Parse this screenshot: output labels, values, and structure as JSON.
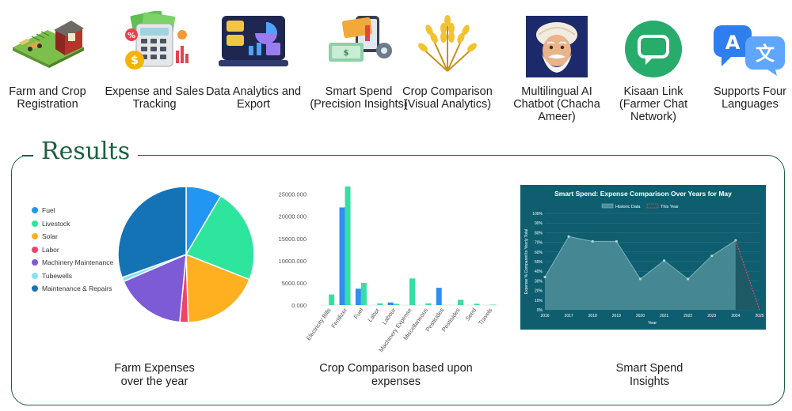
{
  "features": [
    {
      "label": "Farm and Crop Registration",
      "icon": "farm-icon"
    },
    {
      "label": "Expense and Sales Tracking",
      "icon": "calculator-money-icon"
    },
    {
      "label": "Data Analytics and Export",
      "icon": "dashboard-icon"
    },
    {
      "label": "Smart Spend (Precision Insights)",
      "icon": "cards-settings-icon"
    },
    {
      "label": "Crop Comparison (Visual Analytics)",
      "icon": "wheat-icon"
    },
    {
      "label": "Multilingual AI Chatbot (Chacha Ameer)",
      "icon": "chacha-ameer-avatar-icon"
    },
    {
      "label": "Kisaan Link (Farmer Chat Network)",
      "icon": "chat-bubble-icon"
    },
    {
      "label": "Supports Four Languages",
      "icon": "translate-icon"
    }
  ],
  "results_title": "Results",
  "captions": {
    "pie": "Farm Expenses over the year",
    "bar": "Crop Comparison based upon expenses",
    "smart": "Smart Spend Insights"
  },
  "chart_data": [
    {
      "type": "pie",
      "title": "",
      "legend_position": "left",
      "slices": [
        {
          "name": "Fuel",
          "value": 8.5,
          "color": "#2196f3"
        },
        {
          "name": "Livestock",
          "value": 22.5,
          "color": "#2ee59d"
        },
        {
          "name": "Solar",
          "value": 18.5,
          "color": "#ffb020"
        },
        {
          "name": "Labor",
          "value": 2.0,
          "color": "#f0436b"
        },
        {
          "name": "Machinery Maintenance",
          "value": 17.0,
          "color": "#7d5ad6"
        },
        {
          "name": "Tubewells",
          "value": 1.0,
          "color": "#7fe4f5"
        },
        {
          "name": "Maintenance & Repairs",
          "value": 30.5,
          "color": "#1373b5"
        }
      ]
    },
    {
      "type": "bar",
      "title": "",
      "xlabel": "",
      "ylabel": "",
      "ylim": [
        0,
        26000
      ],
      "yticks": [
        "0.000",
        "5000.000",
        "10000.000",
        "15000.000",
        "20000.000",
        "25000.000"
      ],
      "yticks_values": [
        0,
        5000,
        10000,
        15000,
        20000,
        25000
      ],
      "categories": [
        "Electricity Bills",
        "Fertilizer",
        "Fuel",
        "Labor",
        "Labour",
        "Machinery Expense",
        "Miscellaneous",
        "Pesticides",
        "Pestisides",
        "Seed",
        "Travels"
      ],
      "series": [
        {
          "values": [
            0,
            22000,
            3700,
            0,
            600,
            0,
            0,
            3900,
            0,
            0,
            0
          ],
          "color": "#2f8ff0"
        },
        {
          "values": [
            2400,
            26800,
            5000,
            400,
            300,
            6000,
            400,
            0,
            1200,
            300,
            100
          ],
          "color": "#34e0a1"
        }
      ]
    },
    {
      "type": "area",
      "title": "Smart Spend: Expense Comparison Over Years for May",
      "xlabel": "Year",
      "ylabel": "Expense % Compared to Yearly Total",
      "ylim": [
        0,
        100
      ],
      "yticks": [
        "0%",
        "10%",
        "20%",
        "30%",
        "40%",
        "50%",
        "60%",
        "70%",
        "80%",
        "90%",
        "100%"
      ],
      "yticks_values": [
        0,
        10,
        20,
        30,
        40,
        50,
        60,
        70,
        80,
        90,
        100
      ],
      "x": [
        "2016",
        "2017",
        "2018",
        "2019",
        "2020",
        "2021",
        "2022",
        "2023",
        "2024",
        "2025"
      ],
      "series": [
        {
          "name": "Historic Data",
          "values": [
            34,
            76,
            71,
            71,
            32,
            51,
            32,
            56,
            72,
            null
          ],
          "color": "#4f8e99"
        },
        {
          "name": "This Year",
          "values": [
            null,
            null,
            null,
            null,
            null,
            null,
            null,
            null,
            72,
            0
          ],
          "color": "#e5547a"
        }
      ],
      "legend_position": "top"
    }
  ]
}
